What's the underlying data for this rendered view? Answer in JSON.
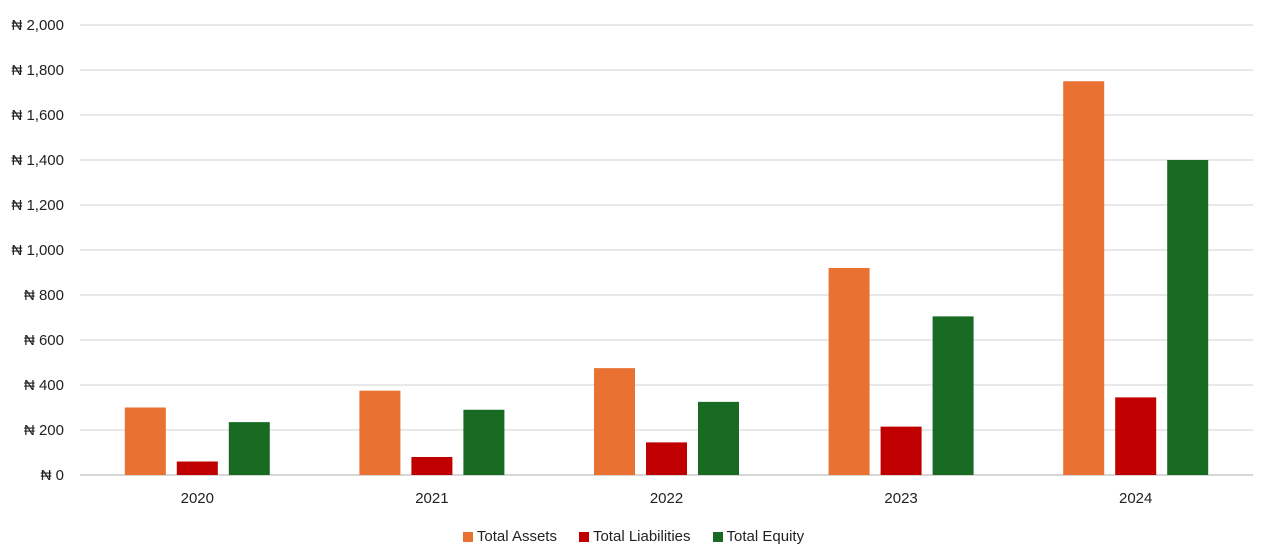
{
  "chart_data": {
    "type": "bar",
    "title": "",
    "xlabel": "",
    "ylabel": "",
    "categories": [
      "2020",
      "2021",
      "2022",
      "2023",
      "2024"
    ],
    "series": [
      {
        "name": "Total Assets",
        "color": "#E97132",
        "values": [
          300,
          375,
          475,
          920,
          1750
        ]
      },
      {
        "name": "Total Liabilities",
        "color": "#C00000",
        "values": [
          60,
          80,
          145,
          215,
          345
        ]
      },
      {
        "name": "Total Equity",
        "color": "#196B24",
        "values": [
          235,
          290,
          325,
          705,
          1400
        ]
      }
    ],
    "ylim": [
      0,
      2000
    ],
    "yticks": [
      0,
      200,
      400,
      600,
      800,
      1000,
      1200,
      1400,
      1600,
      1800,
      2000
    ],
    "ytick_labels": [
      "₦ 0",
      "₦ 200",
      "₦ 400",
      "₦ 600",
      "₦ 800",
      "₦ 1,000",
      "₦ 1,200",
      "₦ 1,400",
      "₦ 1,600",
      "₦ 1,800",
      "₦ 2,000"
    ],
    "grid": true,
    "legend_position": "bottom-center",
    "gridline_color": "#D9D9D9"
  }
}
